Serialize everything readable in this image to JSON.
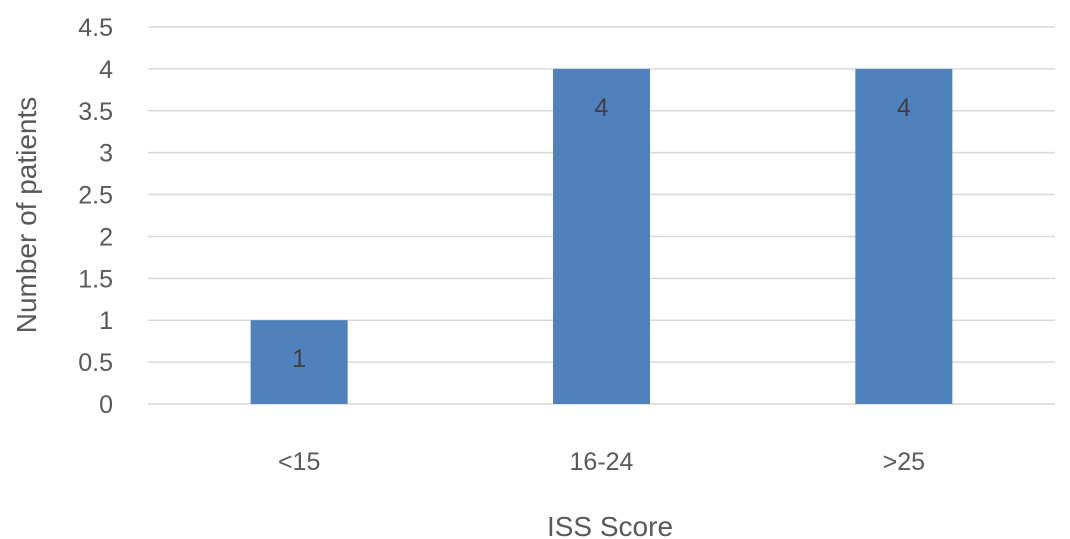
{
  "chart_data": {
    "type": "bar",
    "categories": [
      "<15",
      "16-24",
      ">25"
    ],
    "values": [
      1,
      4,
      4
    ],
    "data_labels": [
      "1",
      "4",
      "4"
    ],
    "title": "",
    "xlabel": "ISS Score",
    "ylabel": "Number of patients",
    "ylim": [
      0,
      4.5
    ],
    "yticks": [
      "0",
      "0.5",
      "1",
      "1.5",
      "2",
      "2.5",
      "3",
      "3.5",
      "4",
      "4.5"
    ],
    "grid": true,
    "legend": "none",
    "bar_color": "#4f81bd",
    "gridline_color": "#d9d9d9"
  }
}
